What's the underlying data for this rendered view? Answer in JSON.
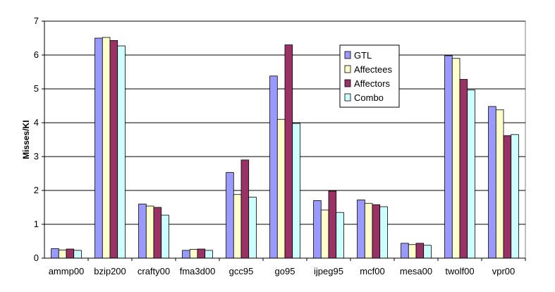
{
  "chart_data": {
    "type": "bar",
    "title": "",
    "xlabel": "",
    "ylabel": "Misses/KI",
    "ylim": [
      0,
      7
    ],
    "yticks": [
      0,
      1,
      2,
      3,
      4,
      5,
      6,
      7
    ],
    "grid": "horizontal",
    "legend_position": "right",
    "categories": [
      "ammp00",
      "bzip200",
      "crafty00",
      "fma3d00",
      "gcc95",
      "go95",
      "ijpeg95",
      "mcf00",
      "mesa00",
      "twolf00",
      "vpr00"
    ],
    "series": [
      {
        "name": "GTL",
        "color": "#9999ff",
        "values": [
          0.28,
          6.5,
          1.6,
          0.23,
          2.53,
          5.38,
          1.7,
          1.72,
          0.44,
          5.98,
          4.48
        ]
      },
      {
        "name": "Affectees",
        "color": "#ffffcc",
        "values": [
          0.24,
          6.52,
          1.54,
          0.26,
          1.88,
          4.1,
          1.42,
          1.62,
          0.4,
          5.9,
          4.38
        ]
      },
      {
        "name": "Affectors",
        "color": "#993366",
        "values": [
          0.27,
          6.43,
          1.5,
          0.27,
          2.9,
          6.3,
          1.98,
          1.58,
          0.44,
          5.28,
          3.62
        ]
      },
      {
        "name": "Combo",
        "color": "#ccffff",
        "values": [
          0.23,
          6.27,
          1.27,
          0.23,
          1.8,
          3.98,
          1.35,
          1.52,
          0.38,
          4.97,
          3.65
        ]
      }
    ]
  }
}
